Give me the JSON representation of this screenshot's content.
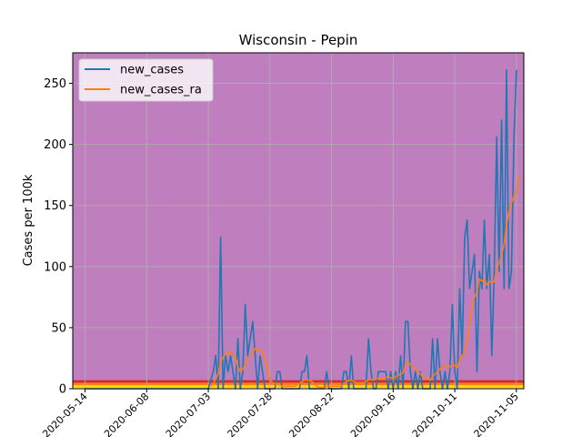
{
  "colors": {
    "background": "#bf7fbf",
    "band_red": "#d62728",
    "band_orange": "#ff7f0e",
    "band_yellow": "#ffd700",
    "band_lightyellow": "#fff176",
    "new_cases": "#1f77b4",
    "new_cases_ra": "#ff7f0e",
    "grid": "#b0b0b0"
  },
  "chart_data": {
    "type": "line",
    "title": "Wisconsin - Pepin",
    "xlabel": "",
    "ylabel": "Cases per 100k",
    "x_start_date": "2020-05-09",
    "xlim_days": [
      0,
      183
    ],
    "ylim": [
      0,
      275
    ],
    "grid": true,
    "legend_position": "upper-left",
    "x_tick_days": [
      5,
      30,
      55,
      80,
      105,
      130,
      155,
      180
    ],
    "x_tick_labels": [
      "2020-05-14",
      "2020-06-08",
      "2020-07-03",
      "2020-07-28",
      "2020-08-22",
      "2020-09-16",
      "2020-10-11",
      "2020-11-05"
    ],
    "y_ticks": [
      0,
      50,
      100,
      150,
      200,
      250
    ],
    "y_tick_labels": [
      "0",
      "50",
      "100",
      "150",
      "200",
      "250"
    ],
    "bands": [
      {
        "from": 0,
        "to": 1,
        "color": "#fff176"
      },
      {
        "from": 1,
        "to": 3,
        "color": "#ffd700"
      },
      {
        "from": 3,
        "to": 5,
        "color": "#ff7f0e"
      },
      {
        "from": 5,
        "to": 7,
        "color": "#d62728"
      }
    ],
    "series": [
      {
        "name": "new_cases",
        "color": "#1f77b4",
        "points": [
          [
            5,
            0
          ],
          [
            10,
            0
          ],
          [
            15,
            0
          ],
          [
            20,
            0
          ],
          [
            25,
            0
          ],
          [
            30,
            0
          ],
          [
            35,
            0
          ],
          [
            40,
            0
          ],
          [
            45,
            0
          ],
          [
            50,
            0
          ],
          [
            55,
            0
          ],
          [
            57,
            14
          ],
          [
            58,
            27
          ],
          [
            59,
            0
          ],
          [
            60,
            124
          ],
          [
            61,
            0
          ],
          [
            62,
            27
          ],
          [
            63,
            14
          ],
          [
            64,
            27
          ],
          [
            65,
            14
          ],
          [
            66,
            0
          ],
          [
            67,
            41
          ],
          [
            68,
            0
          ],
          [
            69,
            14
          ],
          [
            70,
            69
          ],
          [
            71,
            27
          ],
          [
            72,
            41
          ],
          [
            73,
            55
          ],
          [
            74,
            27
          ],
          [
            75,
            0
          ],
          [
            76,
            27
          ],
          [
            77,
            14
          ],
          [
            78,
            0
          ],
          [
            79,
            0
          ],
          [
            80,
            0
          ],
          [
            81,
            0
          ],
          [
            82,
            0
          ],
          [
            83,
            14
          ],
          [
            84,
            14
          ],
          [
            85,
            0
          ],
          [
            86,
            0
          ],
          [
            87,
            0
          ],
          [
            88,
            0
          ],
          [
            89,
            0
          ],
          [
            90,
            0
          ],
          [
            91,
            0
          ],
          [
            92,
            0
          ],
          [
            93,
            14
          ],
          [
            94,
            14
          ],
          [
            95,
            27
          ],
          [
            96,
            0
          ],
          [
            97,
            0
          ],
          [
            98,
            0
          ],
          [
            99,
            0
          ],
          [
            100,
            0
          ],
          [
            101,
            0
          ],
          [
            102,
            0
          ],
          [
            103,
            14
          ],
          [
            104,
            0
          ],
          [
            105,
            0
          ],
          [
            106,
            0
          ],
          [
            107,
            0
          ],
          [
            108,
            0
          ],
          [
            109,
            0
          ],
          [
            110,
            14
          ],
          [
            111,
            14
          ],
          [
            112,
            0
          ],
          [
            113,
            27
          ],
          [
            114,
            0
          ],
          [
            115,
            0
          ],
          [
            116,
            0
          ],
          [
            117,
            0
          ],
          [
            118,
            0
          ],
          [
            119,
            0
          ],
          [
            120,
            41
          ],
          [
            121,
            14
          ],
          [
            122,
            0
          ],
          [
            123,
            0
          ],
          [
            124,
            14
          ],
          [
            125,
            14
          ],
          [
            126,
            14
          ],
          [
            127,
            14
          ],
          [
            128,
            0
          ],
          [
            129,
            14
          ],
          [
            130,
            0
          ],
          [
            131,
            14
          ],
          [
            132,
            0
          ],
          [
            133,
            27
          ],
          [
            134,
            0
          ],
          [
            135,
            55
          ],
          [
            136,
            55
          ],
          [
            137,
            14
          ],
          [
            138,
            0
          ],
          [
            139,
            14
          ],
          [
            140,
            0
          ],
          [
            141,
            14
          ],
          [
            142,
            0
          ],
          [
            143,
            0
          ],
          [
            144,
            0
          ],
          [
            145,
            0
          ],
          [
            146,
            41
          ],
          [
            147,
            0
          ],
          [
            148,
            41
          ],
          [
            149,
            14
          ],
          [
            150,
            0
          ],
          [
            151,
            14
          ],
          [
            152,
            0
          ],
          [
            153,
            14
          ],
          [
            154,
            69
          ],
          [
            155,
            14
          ],
          [
            156,
            0
          ],
          [
            157,
            82
          ],
          [
            158,
            27
          ],
          [
            159,
            124
          ],
          [
            160,
            138
          ],
          [
            161,
            82
          ],
          [
            162,
            96
          ],
          [
            163,
            110
          ],
          [
            164,
            14
          ],
          [
            165,
            96
          ],
          [
            166,
            82
          ],
          [
            167,
            138
          ],
          [
            168,
            82
          ],
          [
            169,
            110
          ],
          [
            170,
            27
          ],
          [
            171,
            96
          ],
          [
            172,
            206
          ],
          [
            173,
            96
          ],
          [
            174,
            220
          ],
          [
            175,
            82
          ],
          [
            176,
            261
          ],
          [
            177,
            82
          ],
          [
            178,
            96
          ],
          [
            179,
            206
          ],
          [
            180,
            261
          ]
        ]
      },
      {
        "name": "new_cases_ra",
        "color": "#ff7f0e",
        "points": [
          [
            56,
            2
          ],
          [
            57,
            4
          ],
          [
            58,
            8
          ],
          [
            59,
            12
          ],
          [
            60,
            22
          ],
          [
            61,
            26
          ],
          [
            62,
            28
          ],
          [
            63,
            30
          ],
          [
            64,
            30
          ],
          [
            65,
            28
          ],
          [
            66,
            26
          ],
          [
            67,
            18
          ],
          [
            68,
            14
          ],
          [
            69,
            16
          ],
          [
            70,
            20
          ],
          [
            71,
            24
          ],
          [
            72,
            26
          ],
          [
            73,
            30
          ],
          [
            74,
            33
          ],
          [
            75,
            31
          ],
          [
            76,
            32
          ],
          [
            77,
            30
          ],
          [
            78,
            24
          ],
          [
            79,
            16
          ],
          [
            80,
            8
          ],
          [
            81,
            5
          ],
          [
            82,
            4
          ],
          [
            83,
            4
          ],
          [
            84,
            3
          ],
          [
            85,
            2
          ],
          [
            86,
            2
          ],
          [
            87,
            2
          ],
          [
            88,
            2
          ],
          [
            89,
            2
          ],
          [
            90,
            2
          ],
          [
            91,
            3
          ],
          [
            92,
            4
          ],
          [
            93,
            6
          ],
          [
            94,
            7
          ],
          [
            95,
            7
          ],
          [
            96,
            7
          ],
          [
            97,
            6
          ],
          [
            98,
            4
          ],
          [
            99,
            2
          ],
          [
            100,
            1
          ],
          [
            101,
            1
          ],
          [
            102,
            1
          ],
          [
            103,
            2
          ],
          [
            104,
            2
          ],
          [
            105,
            2
          ],
          [
            106,
            2
          ],
          [
            107,
            2
          ],
          [
            108,
            2
          ],
          [
            109,
            2
          ],
          [
            110,
            4
          ],
          [
            111,
            6
          ],
          [
            112,
            7
          ],
          [
            113,
            7
          ],
          [
            114,
            6
          ],
          [
            115,
            5
          ],
          [
            116,
            5
          ],
          [
            117,
            5
          ],
          [
            118,
            5
          ],
          [
            119,
            6
          ],
          [
            120,
            7
          ],
          [
            121,
            8
          ],
          [
            122,
            7
          ],
          [
            123,
            8
          ],
          [
            124,
            9
          ],
          [
            125,
            8
          ],
          [
            126,
            8
          ],
          [
            127,
            9
          ],
          [
            128,
            10
          ],
          [
            129,
            9
          ],
          [
            130,
            8
          ],
          [
            131,
            10
          ],
          [
            132,
            11
          ],
          [
            133,
            12
          ],
          [
            134,
            13
          ],
          [
            135,
            20
          ],
          [
            136,
            22
          ],
          [
            137,
            20
          ],
          [
            138,
            18
          ],
          [
            139,
            16
          ],
          [
            140,
            14
          ],
          [
            141,
            12
          ],
          [
            142,
            10
          ],
          [
            143,
            9
          ],
          [
            144,
            8
          ],
          [
            145,
            7
          ],
          [
            146,
            10
          ],
          [
            147,
            12
          ],
          [
            148,
            14
          ],
          [
            149,
            16
          ],
          [
            150,
            18
          ],
          [
            151,
            18
          ],
          [
            152,
            17
          ],
          [
            153,
            18
          ],
          [
            154,
            20
          ],
          [
            155,
            19
          ],
          [
            156,
            17
          ],
          [
            157,
            24
          ],
          [
            158,
            27
          ],
          [
            159,
            30
          ],
          [
            160,
            40
          ],
          [
            161,
            55
          ],
          [
            162,
            70
          ],
          [
            163,
            75
          ],
          [
            164,
            80
          ],
          [
            165,
            90
          ],
          [
            166,
            88
          ],
          [
            167,
            90
          ],
          [
            168,
            85
          ],
          [
            169,
            88
          ],
          [
            170,
            86
          ],
          [
            171,
            88
          ],
          [
            172,
            98
          ],
          [
            173,
            103
          ],
          [
            174,
            110
          ],
          [
            175,
            118
          ],
          [
            176,
            135
          ],
          [
            177,
            145
          ],
          [
            178,
            152
          ],
          [
            179,
            158
          ],
          [
            180,
            160
          ],
          [
            181,
            175
          ]
        ]
      }
    ]
  }
}
